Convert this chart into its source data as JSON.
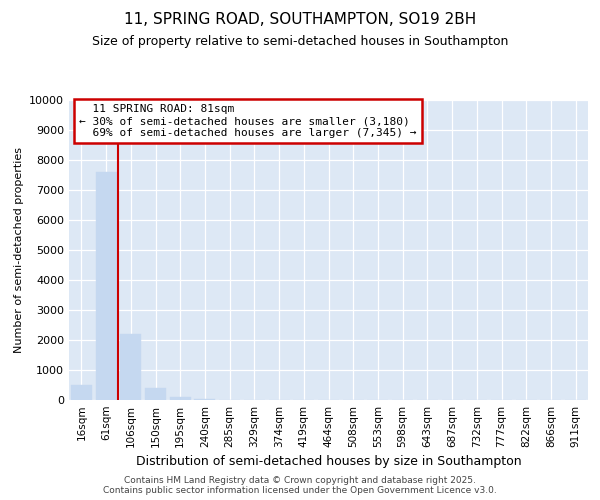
{
  "title": "11, SPRING ROAD, SOUTHAMPTON, SO19 2BH",
  "subtitle": "Size of property relative to semi-detached houses in Southampton",
  "xlabel": "Distribution of semi-detached houses by size in Southampton",
  "ylabel": "Number of semi-detached properties",
  "categories": [
    "16sqm",
    "61sqm",
    "106sqm",
    "150sqm",
    "195sqm",
    "240sqm",
    "285sqm",
    "329sqm",
    "374sqm",
    "419sqm",
    "464sqm",
    "508sqm",
    "553sqm",
    "598sqm",
    "643sqm",
    "687sqm",
    "732sqm",
    "777sqm",
    "822sqm",
    "866sqm",
    "911sqm"
  ],
  "values": [
    500,
    7600,
    2200,
    400,
    100,
    30,
    10,
    5,
    3,
    2,
    2,
    1,
    1,
    1,
    1,
    1,
    1,
    1,
    1,
    1,
    1
  ],
  "bar_color": "#c5d8f0",
  "bar_edgecolor": "#c5d8f0",
  "property_bin_index": 1.5,
  "property_label": "11 SPRING ROAD: 81sqm",
  "pct_smaller": 30,
  "pct_larger": 69,
  "count_smaller": 3180,
  "count_larger": 7345,
  "vline_color": "#cc0000",
  "annotation_box_color": "#cc0000",
  "ylim": [
    0,
    10000
  ],
  "yticks": [
    0,
    1000,
    2000,
    3000,
    4000,
    5000,
    6000,
    7000,
    8000,
    9000,
    10000
  ],
  "bg_color": "#dde8f5",
  "footer": "Contains HM Land Registry data © Crown copyright and database right 2025.\nContains public sector information licensed under the Open Government Licence v3.0.",
  "fig_bg_color": "#ffffff"
}
